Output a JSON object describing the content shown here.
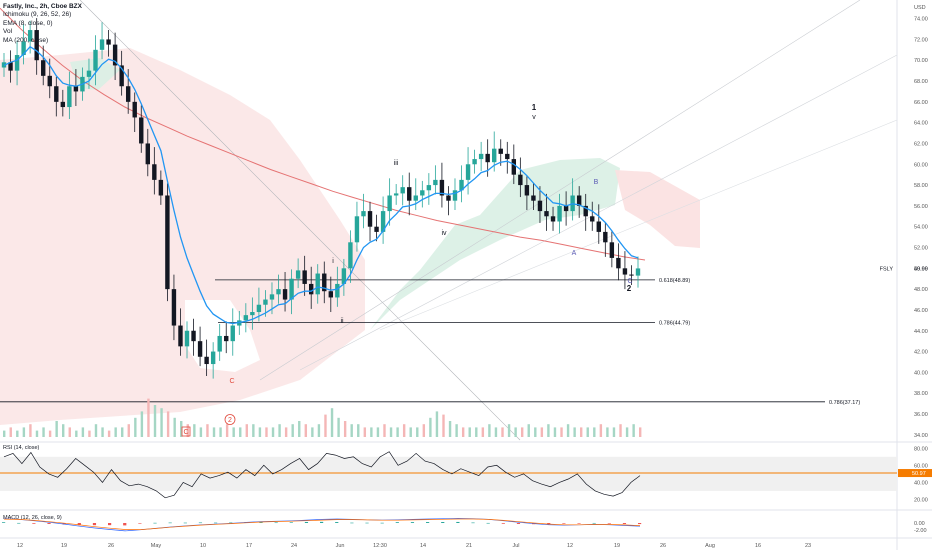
{
  "header": {
    "title": "Fastly, Inc., 2h, Cboe BZX",
    "indicators": [
      "Ichimoku (9, 26, 52, 26)",
      "EMA (8, close, 0)",
      "Vol",
      "MA (200, close)"
    ]
  },
  "price_axis": {
    "currency": "USD",
    "ticks": [
      "74.00",
      "72.00",
      "70.00",
      "68.00",
      "66.00",
      "64.00",
      "62.00",
      "60.00",
      "58.00",
      "56.00",
      "54.00",
      "52.00",
      "50.00",
      "48.00",
      "46.00",
      "44.00",
      "42.00",
      "40.00",
      "38.00",
      "36.00",
      "34.00"
    ],
    "last_price": "49.99",
    "symbol": "FSLY"
  },
  "rsi_pane": {
    "label": "RSI (14, close)",
    "ticks": [
      "80.00",
      "60.00",
      "40.00",
      "20.00"
    ],
    "last": "50.97"
  },
  "macd_pane": {
    "label": "MACD (12, 26, close, 9)",
    "ticks": [
      "0.00",
      "-2.00"
    ]
  },
  "time_axis": {
    "labels": [
      "12",
      "19",
      "26",
      "May",
      "10",
      "17",
      "24",
      "Jun",
      "12:30",
      "14",
      "21",
      "Jul",
      "12",
      "19",
      "26",
      "Aug",
      "16",
      "23"
    ]
  },
  "fib_levels": [
    {
      "label": "0.618(48.89)",
      "price": 48.89
    },
    {
      "label": "0.786(44.79)",
      "price": 44.79
    },
    {
      "label": "0.786(37.17)",
      "price": 37.17
    }
  ],
  "wave_labels": [
    {
      "text": "1",
      "color": "#131722",
      "bold": true
    },
    {
      "text": "v",
      "color": "#131722",
      "bold": false
    },
    {
      "text": "iii",
      "color": "#131722",
      "bold": false
    },
    {
      "text": "iv",
      "color": "#131722",
      "bold": false
    },
    {
      "text": "i",
      "color": "#131722",
      "bold": false
    },
    {
      "text": "ii",
      "color": "#131722",
      "bold": false
    },
    {
      "text": "2",
      "color": "#131722",
      "bold": true
    },
    {
      "text": "A",
      "color": "#5b5bb5",
      "bold": false
    },
    {
      "text": "B",
      "color": "#5b5bb5",
      "bold": false
    },
    {
      "text": "C",
      "color": "#5b5bb5",
      "bold": false
    },
    {
      "text": "C",
      "color": "#e0473a",
      "bold": false
    },
    {
      "text": "C",
      "color": "#e0473a",
      "bold": false
    },
    {
      "text": "2",
      "color": "#e0473a",
      "bold": false
    }
  ],
  "colors": {
    "up": "#26a69a",
    "down": "#131722",
    "ema": "#2196f3",
    "ma200": "#e57373",
    "rsi_line": "#131722",
    "rsi_band": "#f0f0f0",
    "rsi_last": "#f57c00",
    "fib": "#131722"
  },
  "chart_data": {
    "type": "candlestick",
    "price_range": [
      33.5,
      75.5
    ],
    "close_series": [
      69.8,
      69.0,
      70.5,
      71.8,
      72.9,
      70.0,
      68.5,
      67.5,
      66.0,
      65.5,
      67.5,
      67.0,
      68.4,
      69.0,
      71.0,
      72.0,
      71.5,
      69.5,
      67.5,
      66.0,
      64.5,
      62.0,
      60.0,
      58.5,
      57.0,
      48.0,
      44.5,
      42.5,
      44.0,
      43.0,
      41.5,
      40.8,
      42.0,
      43.5,
      43.0,
      44.5,
      45.0,
      45.5,
      45.8,
      46.5,
      47.0,
      47.5,
      48.0,
      47.0,
      49.0,
      49.8,
      48.5,
      47.5,
      49.5,
      47.8,
      47.2,
      48.5,
      50.0,
      52.5,
      55.0,
      55.5,
      54.0,
      53.5,
      55.5,
      57.0,
      57.2,
      57.8,
      56.5,
      57.0,
      57.5,
      58.0,
      58.5,
      57.0,
      56.5,
      57.5,
      58.5,
      60.0,
      60.5,
      61.0,
      60.2,
      61.5,
      61.0,
      60.5,
      59.0,
      58.0,
      57.0,
      56.5,
      55.5,
      55.0,
      54.5,
      56.0,
      55.5,
      57.0,
      56.0,
      55.0,
      54.5,
      53.5,
      52.5,
      51.0,
      50.0,
      49.4,
      49.3,
      49.99
    ],
    "ema8_series": [
      69.5,
      69.8,
      70.0,
      70.6,
      71.3,
      70.9,
      70.3,
      69.5,
      68.5,
      67.8,
      67.6,
      67.5,
      67.7,
      68.0,
      68.8,
      69.6,
      70.1,
      69.9,
      69.2,
      68.3,
      67.2,
      65.8,
      64.3,
      62.8,
      61.3,
      58.4,
      55.6,
      53.0,
      51.0,
      49.4,
      47.8,
      46.4,
      45.6,
      45.2,
      44.8,
      44.7,
      44.8,
      44.9,
      45.1,
      45.4,
      45.7,
      46.1,
      46.5,
      46.6,
      47.1,
      47.6,
      47.8,
      47.8,
      48.2,
      48.1,
      47.9,
      48.0,
      48.5,
      49.4,
      50.8,
      52.0,
      52.5,
      52.8,
      53.6,
      54.6,
      55.2,
      55.9,
      56.0,
      56.2,
      56.6,
      56.9,
      57.2,
      57.2,
      57.1,
      57.2,
      57.5,
      58.1,
      58.6,
      59.2,
      59.4,
      59.9,
      60.2,
      60.3,
      60.0,
      59.5,
      58.9,
      58.2,
      57.5,
      56.9,
      56.3,
      56.2,
      56.0,
      56.2,
      56.1,
      55.8,
      55.5,
      55.0,
      54.4,
      53.6,
      52.7,
      51.9,
      51.2,
      51.0
    ],
    "ma200_series": [
      75.0,
      73.0,
      71.2,
      69.5,
      68.0,
      66.7,
      65.5,
      64.5,
      63.6,
      62.7,
      61.9,
      61.1,
      60.3,
      59.5,
      58.8,
      58.1,
      57.4,
      56.8,
      56.2,
      55.6,
      55.1,
      54.6,
      54.2,
      53.8,
      53.4,
      53.0,
      52.7,
      52.3,
      51.9,
      51.5,
      51.1,
      50.8
    ],
    "rsi_series": [
      70,
      74,
      62,
      75,
      58,
      50,
      46,
      56,
      68,
      60,
      52,
      40,
      55,
      42,
      36,
      38,
      35,
      30,
      22,
      25,
      40,
      35,
      50,
      45,
      48,
      52,
      45,
      55,
      48,
      60,
      50,
      55,
      62,
      68,
      55,
      62,
      74,
      72,
      68,
      70,
      62,
      58,
      70,
      76,
      60,
      65,
      74,
      65,
      62,
      55,
      50,
      56,
      52,
      48,
      58,
      60,
      52,
      46,
      50,
      42,
      38,
      35,
      40,
      44,
      50,
      38,
      30,
      26,
      24,
      28,
      40,
      48
    ],
    "macd_series": [
      1.2,
      1.0,
      0.6,
      0.2,
      -0.3,
      -0.9,
      -1.4,
      -1.8,
      -2.2,
      -1.9,
      -1.5,
      -1.1,
      -0.8,
      -0.5,
      -0.3,
      -0.1,
      0.2,
      0.4,
      0.5,
      0.6,
      0.8,
      1.0,
      1.1,
      1.0,
      0.9,
      0.8,
      0.9,
      1.0,
      1.1,
      1.2,
      1.3,
      1.2,
      1.0,
      0.6,
      0.2,
      -0.2,
      -0.5,
      -0.6,
      -0.5,
      -0.4,
      -0.5,
      -0.7,
      -0.9
    ],
    "volume_series": [
      2,
      3,
      2,
      3,
      4,
      2,
      3,
      2,
      5,
      4,
      3,
      2,
      3,
      2,
      4,
      3,
      2,
      3,
      3,
      4,
      6,
      8,
      12,
      10,
      9,
      8,
      6,
      5,
      4,
      4,
      3,
      4,
      3,
      3,
      4,
      3,
      3,
      4,
      4,
      3,
      3,
      3,
      4,
      3,
      4,
      5,
      4,
      3,
      4,
      7,
      9,
      6,
      5,
      4,
      4,
      3,
      3,
      3,
      4,
      3,
      3,
      4,
      3,
      3,
      4,
      6,
      8,
      7,
      5,
      4,
      3,
      3,
      3,
      3,
      4,
      3,
      3,
      4,
      3,
      3,
      4,
      3,
      3,
      4,
      3,
      3,
      4,
      3,
      3,
      3,
      3,
      4,
      3,
      3,
      4,
      3,
      4,
      3
    ],
    "xlabel": "",
    "ylabel": ""
  }
}
